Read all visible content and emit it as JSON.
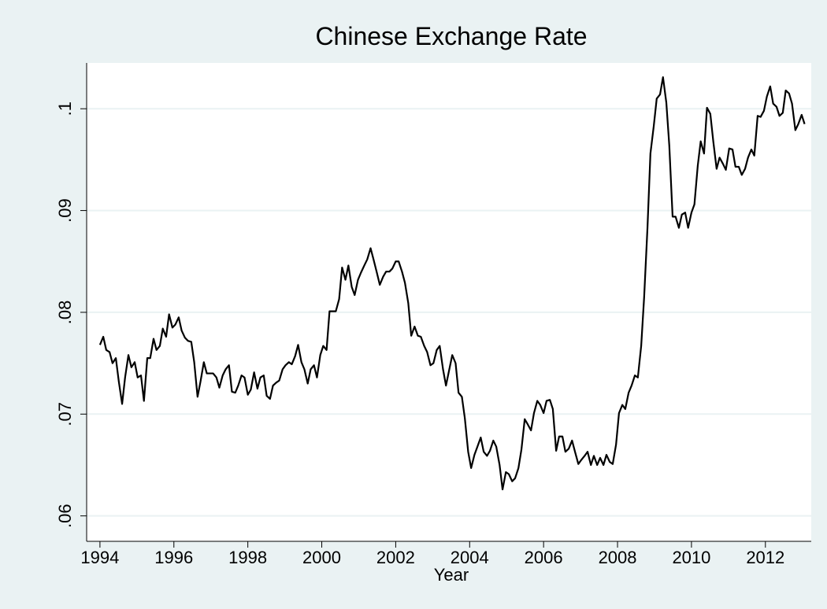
{
  "chart_data": {
    "type": "line",
    "title": "Chinese Exchange Rate",
    "xlabel": "Year",
    "x": [
      1994.0,
      1994.09,
      1994.17,
      1994.26,
      1994.34,
      1994.43,
      1994.51,
      1994.6,
      1994.68,
      1994.77,
      1994.85,
      1994.94,
      1995.02,
      1995.11,
      1995.19,
      1995.28,
      1995.36,
      1995.45,
      1995.53,
      1995.62,
      1995.7,
      1995.79,
      1995.87,
      1995.96,
      1996.04,
      1996.13,
      1996.21,
      1996.3,
      1996.38,
      1996.47,
      1996.55,
      1996.64,
      1996.72,
      1996.81,
      1996.89,
      1996.98,
      1997.06,
      1997.15,
      1997.23,
      1997.32,
      1997.4,
      1997.49,
      1997.57,
      1997.66,
      1997.74,
      1997.83,
      1997.91,
      1998.0,
      1998.08,
      1998.17,
      1998.26,
      1998.34,
      1998.43,
      1998.51,
      1998.6,
      1998.68,
      1998.77,
      1998.85,
      1998.94,
      1999.02,
      1999.11,
      1999.19,
      1999.28,
      1999.36,
      1999.45,
      1999.53,
      1999.62,
      1999.7,
      1999.79,
      1999.87,
      1999.96,
      2000.04,
      2000.13,
      2000.21,
      2000.3,
      2000.38,
      2000.47,
      2000.55,
      2000.64,
      2000.72,
      2000.81,
      2000.89,
      2000.98,
      2001.06,
      2001.15,
      2001.23,
      2001.32,
      2001.4,
      2001.49,
      2001.57,
      2001.66,
      2001.74,
      2001.83,
      2001.91,
      2002.0,
      2002.08,
      2002.17,
      2002.25,
      2002.34,
      2002.42,
      2002.51,
      2002.6,
      2002.68,
      2002.77,
      2002.85,
      2002.94,
      2003.02,
      2003.11,
      2003.19,
      2003.28,
      2003.36,
      2003.45,
      2003.53,
      2003.62,
      2003.7,
      2003.79,
      2003.87,
      2003.96,
      2004.04,
      2004.13,
      2004.21,
      2004.3,
      2004.38,
      2004.47,
      2004.55,
      2004.64,
      2004.72,
      2004.81,
      2004.89,
      2004.98,
      2005.06,
      2005.15,
      2005.23,
      2005.32,
      2005.4,
      2005.49,
      2005.57,
      2005.66,
      2005.74,
      2005.83,
      2005.91,
      2006.0,
      2006.08,
      2006.17,
      2006.25,
      2006.34,
      2006.42,
      2006.51,
      2006.59,
      2006.68,
      2006.77,
      2006.85,
      2006.94,
      2007.02,
      2007.11,
      2007.19,
      2007.28,
      2007.36,
      2007.45,
      2007.53,
      2007.62,
      2007.7,
      2007.79,
      2007.87,
      2007.96,
      2008.04,
      2008.13,
      2008.21,
      2008.3,
      2008.38,
      2008.47,
      2008.55,
      2008.64,
      2008.72,
      2008.81,
      2008.89,
      2008.98,
      2009.06,
      2009.15,
      2009.23,
      2009.32,
      2009.4,
      2009.49,
      2009.57,
      2009.66,
      2009.74,
      2009.83,
      2009.91,
      2010.0,
      2010.08,
      2010.17,
      2010.25,
      2010.34,
      2010.42,
      2010.51,
      2010.59,
      2010.68,
      2010.76,
      2010.85,
      2010.93,
      2011.02,
      2011.11,
      2011.19,
      2011.28,
      2011.36,
      2011.45,
      2011.53,
      2011.62,
      2011.7,
      2011.79,
      2011.87,
      2011.96,
      2012.04,
      2012.13,
      2012.21,
      2012.3,
      2012.38,
      2012.47,
      2012.55,
      2012.64,
      2012.72,
      2012.81,
      2012.89,
      2012.98,
      2013.06
    ],
    "series": [
      {
        "color": "#000000",
        "values": [
          0.0768,
          0.0776,
          0.0763,
          0.0761,
          0.075,
          0.0755,
          0.0732,
          0.071,
          0.0736,
          0.0758,
          0.0746,
          0.0751,
          0.0736,
          0.0738,
          0.0713,
          0.0755,
          0.0755,
          0.0774,
          0.0763,
          0.0767,
          0.0784,
          0.0776,
          0.0798,
          0.0785,
          0.0788,
          0.0795,
          0.0782,
          0.0775,
          0.0772,
          0.0771,
          0.0751,
          0.0717,
          0.0732,
          0.0751,
          0.074,
          0.074,
          0.074,
          0.0736,
          0.0726,
          0.0738,
          0.0744,
          0.0748,
          0.0722,
          0.0721,
          0.0728,
          0.0738,
          0.0736,
          0.0719,
          0.0724,
          0.0741,
          0.0725,
          0.0736,
          0.0738,
          0.0718,
          0.0715,
          0.0728,
          0.0731,
          0.0733,
          0.0744,
          0.0748,
          0.0751,
          0.0749,
          0.0757,
          0.0768,
          0.0751,
          0.0744,
          0.073,
          0.0744,
          0.0748,
          0.0736,
          0.0758,
          0.0767,
          0.0763,
          0.0801,
          0.0801,
          0.0801,
          0.0813,
          0.0844,
          0.0832,
          0.0846,
          0.0825,
          0.0817,
          0.0832,
          0.0839,
          0.0846,
          0.0852,
          0.0863,
          0.0852,
          0.0839,
          0.0827,
          0.0835,
          0.084,
          0.084,
          0.0843,
          0.085,
          0.085,
          0.084,
          0.0829,
          0.0809,
          0.0777,
          0.0786,
          0.0777,
          0.0776,
          0.0767,
          0.0761,
          0.0748,
          0.075,
          0.0763,
          0.0767,
          0.0744,
          0.0728,
          0.0744,
          0.0758,
          0.075,
          0.0721,
          0.0717,
          0.0696,
          0.0663,
          0.0647,
          0.066,
          0.0668,
          0.0677,
          0.0663,
          0.0659,
          0.0664,
          0.0674,
          0.0668,
          0.065,
          0.0626,
          0.0643,
          0.0641,
          0.0634,
          0.0637,
          0.0647,
          0.0665,
          0.0695,
          0.069,
          0.0684,
          0.0701,
          0.0713,
          0.0709,
          0.0701,
          0.0713,
          0.0714,
          0.0705,
          0.0664,
          0.0678,
          0.0678,
          0.0663,
          0.0666,
          0.0674,
          0.0663,
          0.0651,
          0.0655,
          0.0659,
          0.0663,
          0.065,
          0.0659,
          0.065,
          0.0657,
          0.065,
          0.066,
          0.0653,
          0.0651,
          0.067,
          0.0701,
          0.0709,
          0.0705,
          0.0721,
          0.0728,
          0.0738,
          0.0736,
          0.0767,
          0.0815,
          0.0883,
          0.0956,
          0.0983,
          0.101,
          0.1014,
          0.1031,
          0.1006,
          0.0964,
          0.0894,
          0.0894,
          0.0883,
          0.0896,
          0.0898,
          0.0883,
          0.0898,
          0.0906,
          0.0944,
          0.0968,
          0.0956,
          0.1001,
          0.0995,
          0.0968,
          0.0941,
          0.0952,
          0.0946,
          0.094,
          0.0961,
          0.096,
          0.0943,
          0.0943,
          0.0935,
          0.0941,
          0.0952,
          0.096,
          0.0954,
          0.0993,
          0.0992,
          0.0998,
          0.1012,
          0.1022,
          0.1005,
          0.1002,
          0.0993,
          0.0996,
          0.1018,
          0.1015,
          0.1005,
          0.0979,
          0.0985,
          0.0994,
          0.0985
        ]
      }
    ],
    "xlim": [
      1993.64,
      2013.24
    ],
    "ylim": [
      0.0575,
      0.1045
    ],
    "xticks": [
      1994,
      1996,
      1998,
      2000,
      2002,
      2004,
      2006,
      2008,
      2010,
      2012
    ],
    "yticks": [
      {
        "value": 0.06,
        "label": ".06"
      },
      {
        "value": 0.07,
        "label": ".07"
      },
      {
        "value": 0.08,
        "label": ".08"
      },
      {
        "value": 0.09,
        "label": ".09"
      },
      {
        "value": 0.1,
        "label": ".1"
      }
    ],
    "grid": true
  }
}
